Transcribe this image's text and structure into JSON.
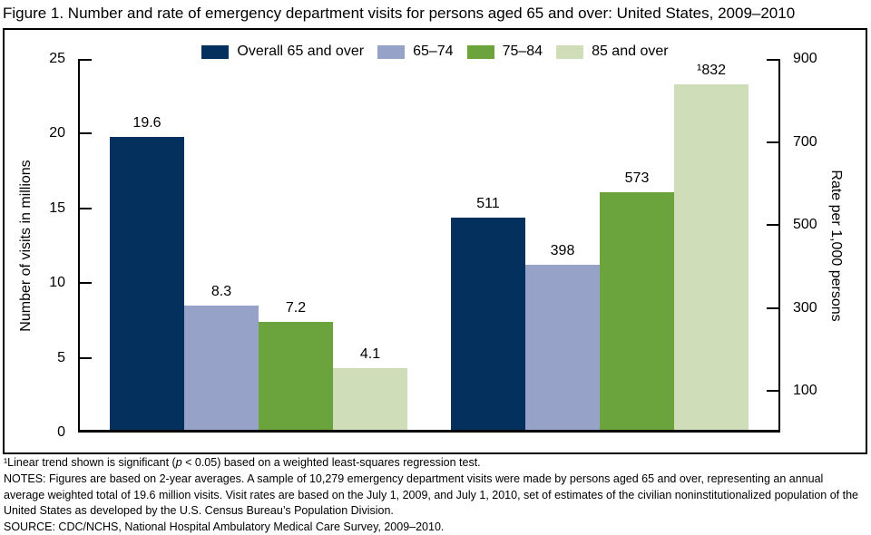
{
  "title": "Figure 1. Number and rate of emergency department visits for persons aged 65 and over: United States, 2009–2010",
  "legend": [
    {
      "label": "Overall 65 and over",
      "color": "#04305e"
    },
    {
      "label": "65–74",
      "color": "#96a2c8"
    },
    {
      "label": "75–84",
      "color": "#6ba33c"
    },
    {
      "label": "85 and over",
      "color": "#cfddb8"
    }
  ],
  "chart_data": {
    "type": "bar",
    "title": "Number and rate of emergency department visits for persons aged 65 and over: United States, 2009–2010",
    "categories": [
      "Overall 65 and over",
      "65–74",
      "75–84",
      "85 and over"
    ],
    "groups": [
      {
        "measure": "Number of visits in millions",
        "axis": "left",
        "bars": [
          {
            "category": "Overall 65 and over",
            "value": 19.6,
            "label": "19.6"
          },
          {
            "category": "65–74",
            "value": 8.3,
            "label": "8.3"
          },
          {
            "category": "75–84",
            "value": 7.2,
            "label": "7.2"
          },
          {
            "category": "85 and over",
            "value": 4.1,
            "label": "4.1"
          }
        ]
      },
      {
        "measure": "Rate per 1,000 persons",
        "axis": "right",
        "bars": [
          {
            "category": "Overall 65 and over",
            "value": 511,
            "label": "511"
          },
          {
            "category": "65–74",
            "value": 398,
            "label": "398"
          },
          {
            "category": "75–84",
            "value": 573,
            "label": "573"
          },
          {
            "category": "85 and over",
            "value": 832,
            "label": "¹832"
          }
        ]
      }
    ],
    "left_axis": {
      "label": "Number of visits in millions",
      "range": [
        0,
        25
      ],
      "ticks": [
        0,
        5,
        10,
        15,
        20,
        25
      ]
    },
    "right_axis": {
      "label": "Rate per 1,000 persons",
      "range": [
        0,
        900
      ],
      "ticks": [
        100,
        300,
        500,
        700,
        900
      ]
    },
    "legend_position": "top",
    "grid": false
  },
  "footnotes": {
    "trend_pre": "¹Linear trend shown is significant (",
    "trend_p": "p",
    "trend_post": " < 0.05) based on a weighted least-squares regression test.",
    "notes": "NOTES: Figures are based on 2-year averages. A sample of 10,279 emergency department visits were made by persons aged 65 and over, representing an annual average weighted total of 19.6 million visits. Visit rates are based on the July 1, 2009, and July 1, 2010, set of estimates of the civilian noninstitutionalized population of the United States as developed by the U.S. Census Bureau’s Population Division.",
    "source": "SOURCE: CDC/NCHS, National Hospital Ambulatory Medical Care Survey, 2009–2010."
  }
}
